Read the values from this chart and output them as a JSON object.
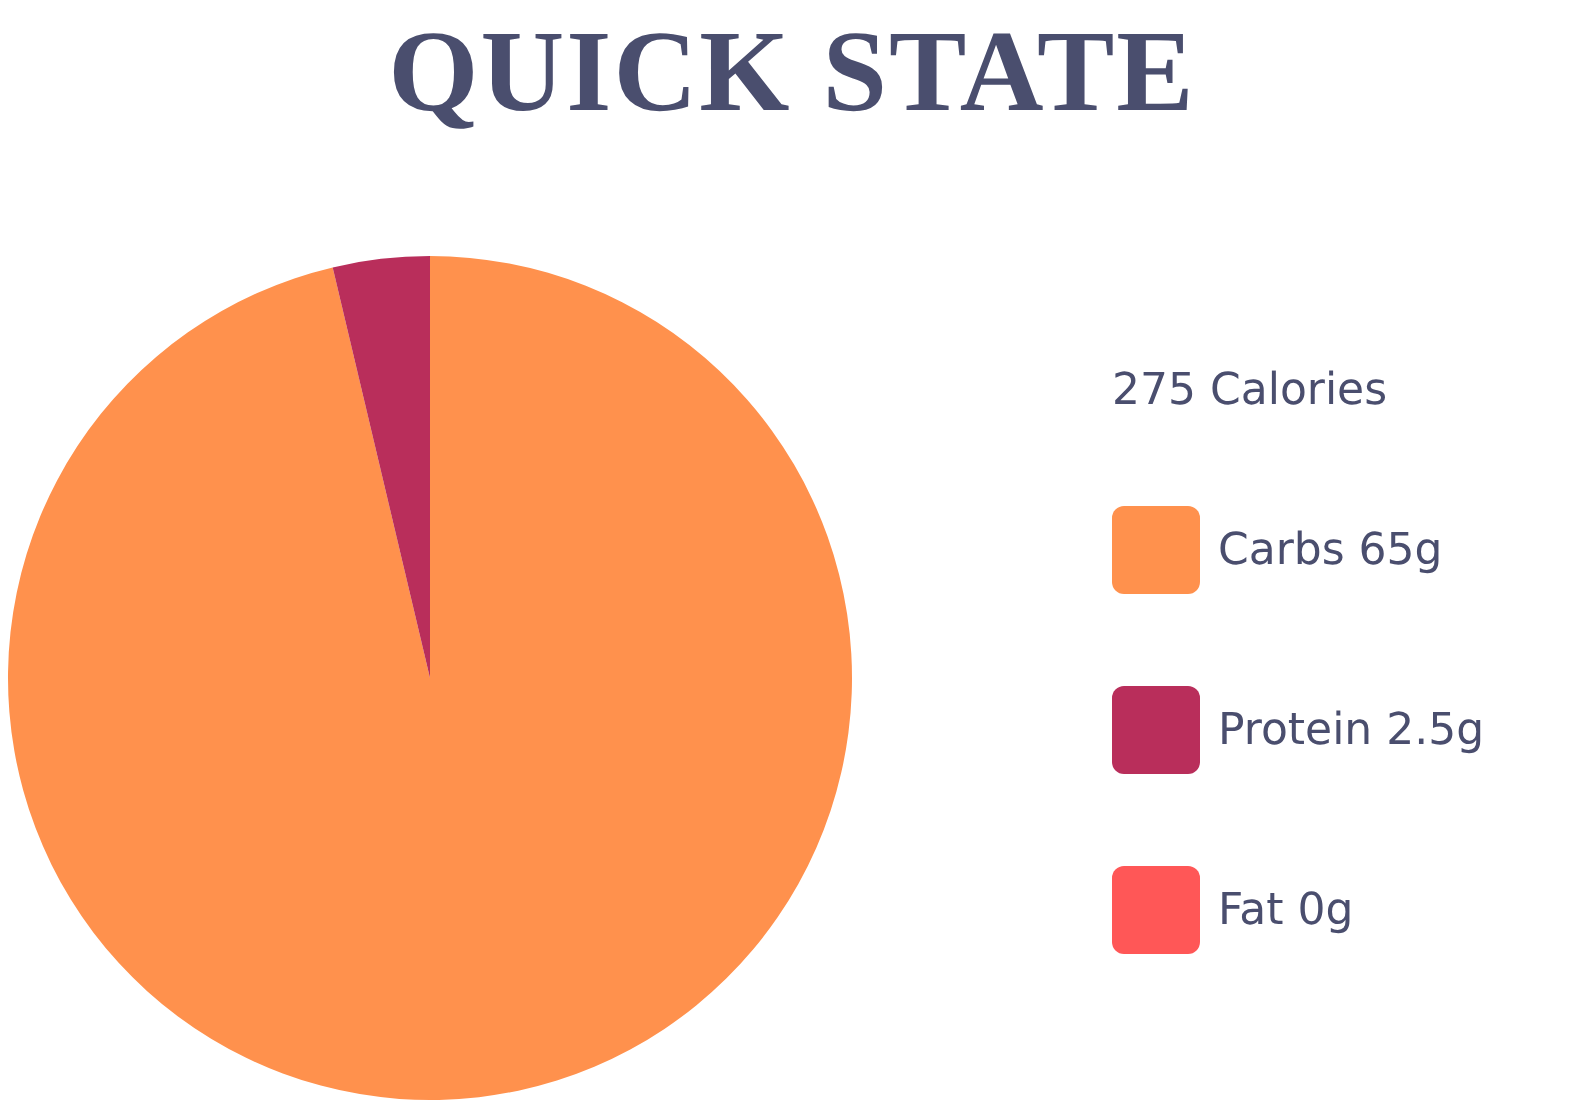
{
  "chart_data": {
    "type": "pie",
    "title": "QUICK STATE",
    "categories": [
      "Carbs 65g",
      "Protein 2.5g",
      "Fat 0g"
    ],
    "values": [
      65,
      2.5,
      0
    ],
    "colors": [
      "#ff914d",
      "#b92e5b",
      "#ff5757"
    ],
    "annotations": [
      "275 Calories"
    ],
    "legend": "right"
  }
}
